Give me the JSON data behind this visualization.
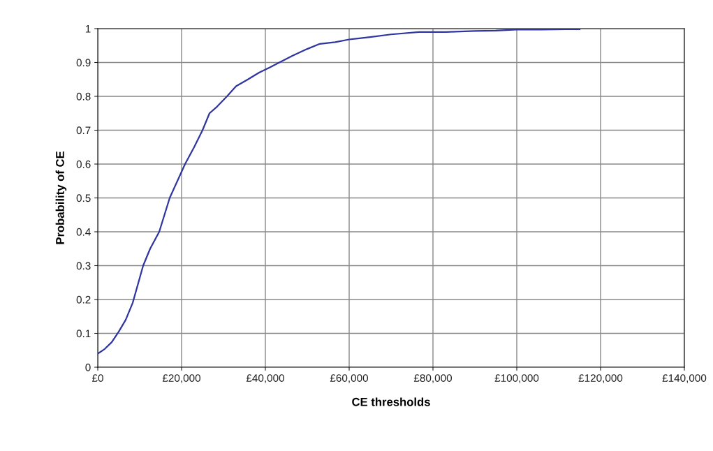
{
  "chart_data": {
    "type": "line",
    "xlabel": "CE thresholds",
    "ylabel": "Probability of CE",
    "x": [
      0,
      1667,
      3333,
      5000,
      6667,
      8333,
      10833,
      12500,
      14667,
      17167,
      20833,
      23000,
      25000,
      26667,
      28500,
      30833,
      33000,
      35833,
      38500,
      41000,
      43333,
      46500,
      50000,
      53000,
      56667,
      60000,
      65000,
      70000,
      76667,
      83000,
      90000,
      95000,
      100000,
      106000,
      111667,
      115000
    ],
    "series": [
      {
        "color": "#2e35a0",
        "values": [
          0.04,
          0.054,
          0.074,
          0.105,
          0.14,
          0.19,
          0.3,
          0.35,
          0.4,
          0.5,
          0.6,
          0.65,
          0.7,
          0.75,
          0.77,
          0.8,
          0.83,
          0.85,
          0.87,
          0.885,
          0.9,
          0.92,
          0.94,
          0.955,
          0.96,
          0.968,
          0.975,
          0.983,
          0.99,
          0.99,
          0.993,
          0.994,
          0.997,
          0.997,
          0.998,
          0.998
        ]
      }
    ],
    "xlim": [
      0,
      140000
    ],
    "ylim": [
      0,
      1
    ],
    "xticks": [
      {
        "value": 0,
        "label": "£0"
      },
      {
        "value": 20000,
        "label": "£20,000"
      },
      {
        "value": 40000,
        "label": "£40,000"
      },
      {
        "value": 60000,
        "label": "£60,000"
      },
      {
        "value": 80000,
        "label": "£80,000"
      },
      {
        "value": 100000,
        "label": "£100,000"
      },
      {
        "value": 120000,
        "label": "£120,000"
      },
      {
        "value": 140000,
        "label": "£140,000"
      }
    ],
    "yticks": [
      0,
      0.1,
      0.2,
      0.3,
      0.4,
      0.5,
      0.6,
      0.7,
      0.8,
      0.9,
      1
    ],
    "grid": true,
    "marker": "none",
    "line_style": "solid"
  }
}
